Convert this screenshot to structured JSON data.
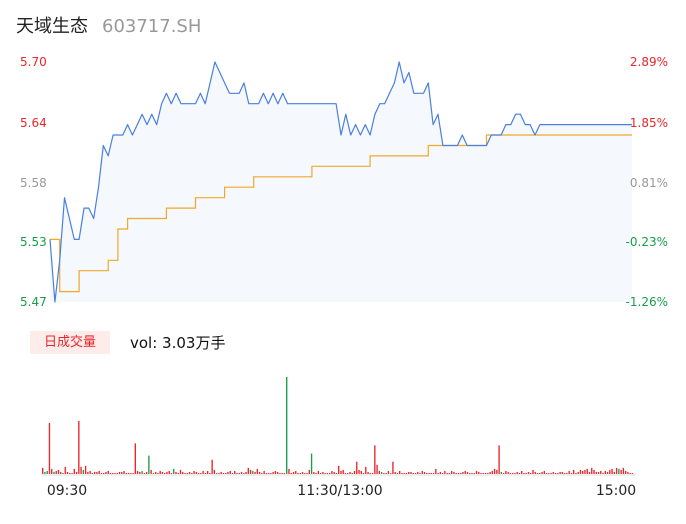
{
  "header": {
    "name": "天域生态",
    "code": "603717.SH"
  },
  "volume_panel": {
    "tag": "日成交量",
    "label": "vol: 3.03万手"
  },
  "colors": {
    "up": "#e8262b",
    "down": "#1a9d4a",
    "price_line": "#4a7fe0",
    "avg_line": "#f0a92a",
    "neutral": "#999999"
  },
  "chart_data": [
    {
      "type": "line",
      "y_ticks": [
        "5.70",
        "5.64",
        "5.58",
        "5.53",
        "5.47"
      ],
      "y_right_ticks": [
        "2.89%",
        "1.85%",
        "0.81%",
        "-0.23%",
        "-1.26%"
      ],
      "x_ticks": [
        "09:30",
        "11:30/13:00",
        "15:00"
      ],
      "ylim": [
        5.47,
        5.7
      ],
      "grid": false,
      "series": [
        {
          "key": "price",
          "x": [
            0,
            2,
            4,
            6,
            8,
            10,
            12,
            14,
            16,
            18,
            20,
            22,
            24,
            26,
            28,
            30,
            32,
            34,
            36,
            38,
            40,
            42,
            44,
            46,
            48,
            50,
            52,
            54,
            56,
            58,
            60,
            62,
            64,
            66,
            68,
            70,
            72,
            74,
            76,
            78,
            80,
            82,
            84,
            86,
            88,
            90,
            92,
            94,
            96,
            98,
            100,
            102,
            104,
            106,
            108,
            110,
            112,
            114,
            116,
            118,
            120,
            122,
            124,
            126,
            128,
            130,
            132,
            134,
            136,
            138,
            140,
            142,
            144,
            146,
            148,
            150,
            152,
            154,
            156,
            158,
            160,
            162,
            164,
            166,
            168,
            170,
            172,
            174,
            176,
            178,
            180,
            182,
            184,
            186,
            188,
            190,
            192,
            194,
            196,
            198,
            200,
            202,
            204,
            206,
            208,
            210,
            212,
            214,
            216,
            218,
            220,
            222,
            224,
            226,
            228,
            230,
            232,
            234,
            236,
            238,
            240
          ],
          "values": [
            5.53,
            5.47,
            5.51,
            5.57,
            5.55,
            5.53,
            5.53,
            5.56,
            5.56,
            5.55,
            5.58,
            5.62,
            5.61,
            5.63,
            5.63,
            5.63,
            5.64,
            5.63,
            5.64,
            5.65,
            5.64,
            5.65,
            5.64,
            5.66,
            5.67,
            5.66,
            5.67,
            5.66,
            5.66,
            5.66,
            5.66,
            5.67,
            5.66,
            5.68,
            5.7,
            5.69,
            5.68,
            5.67,
            5.67,
            5.67,
            5.68,
            5.66,
            5.66,
            5.66,
            5.67,
            5.66,
            5.67,
            5.66,
            5.67,
            5.66,
            5.66,
            5.66,
            5.66,
            5.66,
            5.66,
            5.66,
            5.66,
            5.66,
            5.66,
            5.66,
            5.63,
            5.65,
            5.63,
            5.64,
            5.63,
            5.64,
            5.63,
            5.65,
            5.66,
            5.66,
            5.67,
            5.68,
            5.7,
            5.68,
            5.69,
            5.67,
            5.67,
            5.67,
            5.68,
            5.64,
            5.65,
            5.62,
            5.62,
            5.62,
            5.62,
            5.63,
            5.62,
            5.62,
            5.62,
            5.62,
            5.62,
            5.63,
            5.63,
            5.63,
            5.64,
            5.64,
            5.65,
            5.65,
            5.64,
            5.64,
            5.63,
            5.64,
            5.64,
            5.64,
            5.64,
            5.64,
            5.64,
            5.64,
            5.64,
            5.64,
            5.64,
            5.64,
            5.64,
            5.64,
            5.64,
            5.64,
            5.64,
            5.64,
            5.64,
            5.64,
            5.64
          ]
        },
        {
          "key": "average",
          "x": [
            0,
            4,
            12,
            24,
            28,
            32,
            40,
            48,
            60,
            72,
            84,
            96,
            108,
            120,
            132,
            144,
            156,
            168,
            180,
            192,
            204,
            216,
            228,
            240
          ],
          "values": [
            5.53,
            5.48,
            5.5,
            5.51,
            5.54,
            5.55,
            5.55,
            5.56,
            5.57,
            5.58,
            5.59,
            5.59,
            5.6,
            5.6,
            5.61,
            5.61,
            5.62,
            5.62,
            5.63,
            5.63,
            5.63,
            5.63,
            5.63,
            5.63
          ]
        }
      ]
    },
    {
      "type": "bar",
      "values": [
        6,
        2,
        3,
        50,
        5,
        2,
        3,
        4,
        2,
        1,
        7,
        2,
        1,
        1,
        5,
        2,
        52,
        7,
        4,
        8,
        2,
        3,
        1,
        2,
        2,
        3,
        1,
        1,
        2,
        3,
        1,
        1,
        1,
        1,
        2,
        2,
        3,
        1,
        1,
        1,
        1,
        30,
        3,
        2,
        3,
        1,
        2,
        18,
        4,
        1,
        2,
        1,
        3,
        2,
        1,
        2,
        3,
        1,
        5,
        2,
        1,
        4,
        2,
        1,
        1,
        2,
        1,
        3,
        2,
        1,
        1,
        3,
        1,
        3,
        1,
        14,
        4,
        1,
        1,
        2,
        1,
        1,
        2,
        3,
        1,
        3,
        1,
        1,
        2,
        1,
        2,
        6,
        4,
        3,
        2,
        5,
        2,
        1,
        3,
        1,
        1,
        1,
        2,
        3,
        2,
        1,
        1,
        1,
        95,
        5,
        1,
        2,
        3,
        1,
        1,
        2,
        1,
        1,
        4,
        20,
        2,
        1,
        3,
        1,
        2,
        1,
        1,
        1,
        3,
        2,
        1,
        8,
        3,
        4,
        1,
        1,
        2,
        1,
        3,
        12,
        4,
        3,
        1,
        7,
        2,
        1,
        1,
        28,
        9,
        3,
        2,
        1,
        1,
        3,
        1,
        12,
        2,
        1,
        3,
        1,
        1,
        1,
        2,
        2,
        1,
        1,
        2,
        1,
        3,
        2,
        1,
        1,
        1,
        1,
        5,
        1,
        2,
        1,
        3,
        1,
        1,
        3,
        2,
        1,
        1,
        1,
        2,
        3,
        2,
        1,
        1,
        1,
        3,
        2,
        1,
        1,
        1,
        1,
        2,
        3,
        5,
        4,
        28,
        2,
        1,
        3,
        2,
        1,
        1,
        1,
        2,
        1,
        3,
        1,
        1,
        2,
        1,
        4,
        2,
        1,
        1,
        2,
        3,
        1,
        1,
        1,
        2,
        1,
        1,
        2,
        2,
        1,
        1,
        3,
        1,
        4,
        1,
        2,
        4,
        3,
        4,
        5,
        2,
        6,
        4,
        2,
        2,
        3,
        1,
        3,
        2,
        4,
        5,
        2,
        6,
        5,
        4,
        6,
        3,
        2,
        1,
        1
      ],
      "colors": [
        "up",
        "down",
        "down",
        "up",
        "up",
        "down",
        "up",
        "up",
        "up",
        "down",
        "up",
        "up",
        "up",
        "up",
        "up",
        "up",
        "up",
        "up",
        "down",
        "up",
        "up",
        "up",
        "up",
        "up",
        "up",
        "up",
        "up",
        "up",
        "up",
        "up",
        "up",
        "up",
        "up",
        "up",
        "up",
        "up",
        "up",
        "up",
        "up",
        "up",
        "up",
        "up",
        "up",
        "up",
        "down",
        "up",
        "up",
        "down",
        "up",
        "down",
        "up",
        "up",
        "up",
        "up",
        "up",
        "up",
        "up",
        "up",
        "down",
        "up",
        "up",
        "up",
        "up",
        "up",
        "up",
        "up",
        "up",
        "up",
        "up",
        "up",
        "up",
        "up",
        "up",
        "up",
        "up",
        "up",
        "up",
        "down",
        "up",
        "up",
        "up",
        "up",
        "up",
        "up",
        "up",
        "up",
        "up",
        "up",
        "up",
        "up",
        "up",
        "up",
        "up",
        "down",
        "up",
        "up",
        "up",
        "up",
        "up",
        "up",
        "up",
        "up",
        "up",
        "up",
        "up",
        "up",
        "up",
        "up",
        "down",
        "up",
        "up",
        "up",
        "up",
        "up",
        "up",
        "up",
        "up",
        "up",
        "up",
        "down",
        "up",
        "up",
        "up",
        "up",
        "up",
        "up",
        "up",
        "up",
        "up",
        "up",
        "up",
        "up",
        "up",
        "up",
        "up",
        "up",
        "up",
        "up",
        "up",
        "up",
        "up",
        "up",
        "up",
        "up",
        "up",
        "up",
        "up",
        "up",
        "up",
        "up",
        "down",
        "up",
        "up",
        "up",
        "down",
        "up",
        "up",
        "up",
        "up",
        "up",
        "up",
        "up",
        "up",
        "up",
        "up",
        "up",
        "up",
        "up",
        "up",
        "up",
        "up",
        "up",
        "up",
        "up",
        "up",
        "up",
        "up",
        "up",
        "up",
        "up",
        "up",
        "up",
        "up",
        "up",
        "up",
        "up",
        "up",
        "up",
        "up",
        "up",
        "up",
        "up",
        "up",
        "up",
        "up",
        "up",
        "up",
        "up",
        "up",
        "up",
        "up",
        "up",
        "up",
        "down",
        "up",
        "up",
        "up",
        "up",
        "up",
        "up",
        "up",
        "up",
        "up",
        "up",
        "up",
        "up",
        "up",
        "up",
        "up",
        "up",
        "up",
        "up",
        "up",
        "up",
        "up",
        "up",
        "up",
        "up",
        "up",
        "up",
        "up",
        "up",
        "up",
        "up",
        "up",
        "up",
        "up",
        "up",
        "up",
        "up",
        "up",
        "up",
        "up",
        "up",
        "up",
        "up",
        "up",
        "up",
        "up",
        "up",
        "up",
        "up",
        "up",
        "up",
        "up",
        "down",
        "up",
        "up",
        "up",
        "up",
        "up",
        "up"
      ]
    }
  ]
}
